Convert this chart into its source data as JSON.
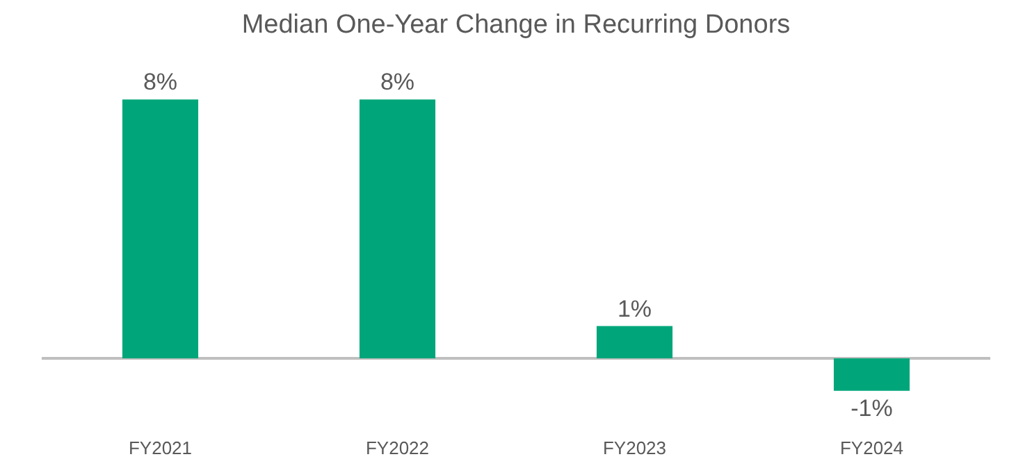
{
  "chart_data": {
    "type": "bar",
    "title": "Median One-Year Change in Recurring Donors",
    "categories": [
      "FY2021",
      "FY2022",
      "FY2023",
      "FY2024"
    ],
    "values": [
      8,
      8,
      1,
      -1
    ],
    "value_labels": [
      "8%",
      "8%",
      "1%",
      "-1%"
    ],
    "color": "#00a67a"
  }
}
